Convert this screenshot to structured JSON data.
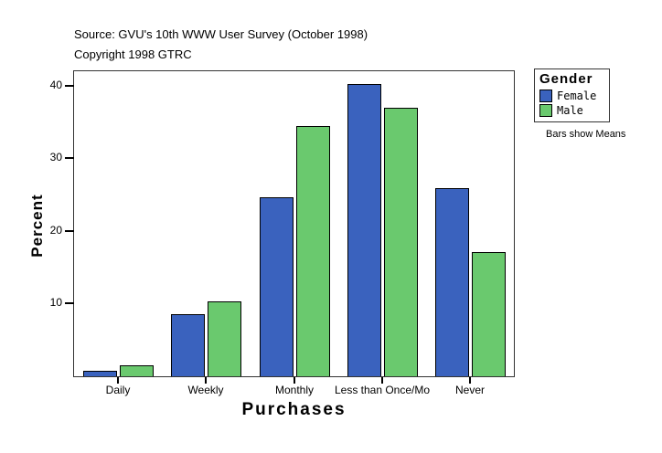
{
  "chart_data": {
    "type": "bar",
    "title": "Source: GVU's 10th WWW User Survey (October 1998)",
    "subtitle": "Copyright 1998 GTRC",
    "categories": [
      "Daily",
      "Weekly",
      "Monthly",
      "Less than Once/Mo",
      "Never"
    ],
    "series": [
      {
        "name": "Female",
        "color": "#3A62BE",
        "values": [
          0.8,
          8.6,
          24.7,
          40.2,
          25.9
        ]
      },
      {
        "name": "Male",
        "color": "#6AC96E",
        "values": [
          1.5,
          10.3,
          34.4,
          37.0,
          17.1
        ]
      }
    ],
    "xlabel": "Purchases",
    "ylabel": "Percent",
    "ylim": [
      0,
      42
    ],
    "yticks": [
      10,
      20,
      30,
      40
    ],
    "grid": false,
    "legend": {
      "title": "Gender",
      "position": "top-right-outside",
      "note": "Bars show Means"
    }
  }
}
